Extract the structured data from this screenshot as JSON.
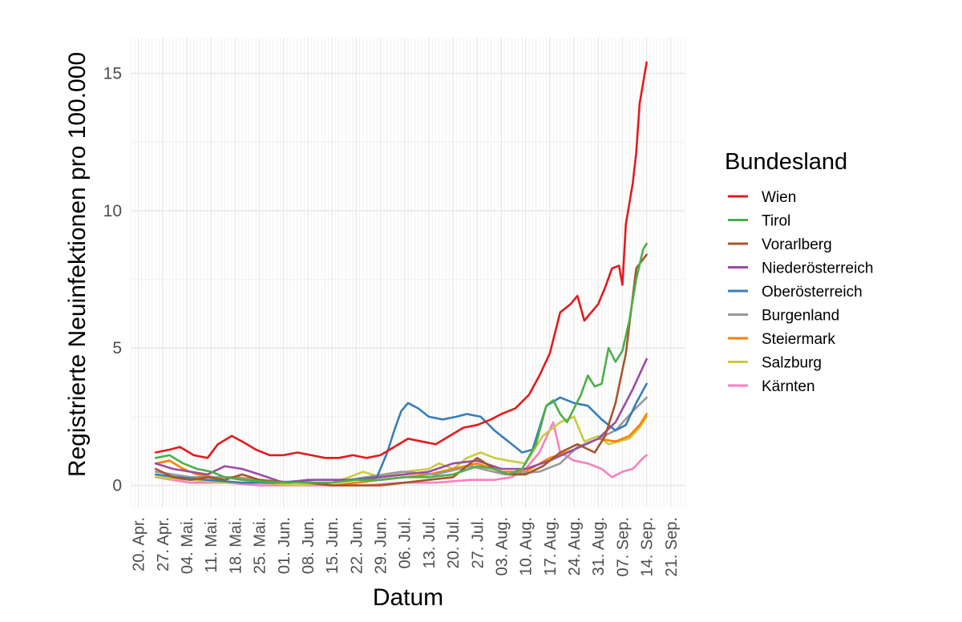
{
  "chart_data": {
    "type": "line",
    "xlabel": "Datum",
    "ylabel": "Registrierte Neuinfektionen pro 100.000",
    "x_tick_labels": [
      "20. Apr.",
      "27. Apr.",
      "04. Mai.",
      "11. Mai.",
      "18. Mai.",
      "25. Mai.",
      "01. Jun.",
      "08. Jun.",
      "15. Jun.",
      "22. Jun.",
      "29. Jun.",
      "06. Jul.",
      "13. Jul.",
      "20. Jul.",
      "27. Jul.",
      "03. Aug.",
      "10. Aug.",
      "17. Aug.",
      "24. Aug.",
      "31. Aug.",
      "07. Sep.",
      "14. Sep.",
      "21. Sep."
    ],
    "y_tick_labels": [
      "0",
      "5",
      "10",
      "15"
    ],
    "xlim": [
      "2020-04-18",
      "2020-09-25"
    ],
    "ylim": [
      -0.8,
      16.3
    ],
    "grid": true,
    "legend": {
      "title": "Bundesland",
      "position": "right"
    },
    "series": [
      {
        "name": "Wien",
        "color": "#e41a1c",
        "points": [
          [
            "2020-04-25",
            1.2
          ],
          [
            "2020-04-29",
            1.3
          ],
          [
            "2020-05-02",
            1.4
          ],
          [
            "2020-05-06",
            1.1
          ],
          [
            "2020-05-10",
            1.0
          ],
          [
            "2020-05-13",
            1.5
          ],
          [
            "2020-05-17",
            1.8
          ],
          [
            "2020-05-20",
            1.6
          ],
          [
            "2020-05-24",
            1.3
          ],
          [
            "2020-05-28",
            1.1
          ],
          [
            "2020-06-01",
            1.1
          ],
          [
            "2020-06-05",
            1.2
          ],
          [
            "2020-06-09",
            1.1
          ],
          [
            "2020-06-13",
            1.0
          ],
          [
            "2020-06-17",
            1.0
          ],
          [
            "2020-06-21",
            1.1
          ],
          [
            "2020-06-25",
            1.0
          ],
          [
            "2020-06-29",
            1.1
          ],
          [
            "2020-07-03",
            1.4
          ],
          [
            "2020-07-07",
            1.7
          ],
          [
            "2020-07-11",
            1.6
          ],
          [
            "2020-07-15",
            1.5
          ],
          [
            "2020-07-19",
            1.8
          ],
          [
            "2020-07-23",
            2.1
          ],
          [
            "2020-07-27",
            2.2
          ],
          [
            "2020-07-31",
            2.4
          ],
          [
            "2020-08-03",
            2.6
          ],
          [
            "2020-08-07",
            2.8
          ],
          [
            "2020-08-11",
            3.3
          ],
          [
            "2020-08-14",
            4.0
          ],
          [
            "2020-08-17",
            4.8
          ],
          [
            "2020-08-20",
            6.3
          ],
          [
            "2020-08-23",
            6.6
          ],
          [
            "2020-08-25",
            6.9
          ],
          [
            "2020-08-27",
            6.0
          ],
          [
            "2020-08-29",
            6.3
          ],
          [
            "2020-08-31",
            6.6
          ],
          [
            "2020-09-02",
            7.2
          ],
          [
            "2020-09-04",
            7.9
          ],
          [
            "2020-09-06",
            8.0
          ],
          [
            "2020-09-07",
            7.3
          ],
          [
            "2020-09-08",
            9.5
          ],
          [
            "2020-09-10",
            11.0
          ],
          [
            "2020-09-11",
            12.1
          ],
          [
            "2020-09-12",
            13.9
          ],
          [
            "2020-09-14",
            15.4
          ]
        ]
      },
      {
        "name": "Tirol",
        "color": "#4daf4a",
        "points": [
          [
            "2020-04-25",
            1.0
          ],
          [
            "2020-04-29",
            1.1
          ],
          [
            "2020-05-03",
            0.8
          ],
          [
            "2020-05-07",
            0.6
          ],
          [
            "2020-05-11",
            0.5
          ],
          [
            "2020-05-15",
            0.3
          ],
          [
            "2020-05-20",
            0.2
          ],
          [
            "2020-05-25",
            0.15
          ],
          [
            "2020-06-01",
            0.1
          ],
          [
            "2020-06-08",
            0.1
          ],
          [
            "2020-06-15",
            0.1
          ],
          [
            "2020-06-22",
            0.2
          ],
          [
            "2020-06-29",
            0.2
          ],
          [
            "2020-07-06",
            0.3
          ],
          [
            "2020-07-13",
            0.3
          ],
          [
            "2020-07-20",
            0.4
          ],
          [
            "2020-07-27",
            0.7
          ],
          [
            "2020-08-01",
            0.6
          ],
          [
            "2020-08-05",
            0.4
          ],
          [
            "2020-08-09",
            0.6
          ],
          [
            "2020-08-13",
            1.5
          ],
          [
            "2020-08-16",
            2.9
          ],
          [
            "2020-08-18",
            3.1
          ],
          [
            "2020-08-20",
            2.6
          ],
          [
            "2020-08-22",
            2.3
          ],
          [
            "2020-08-24",
            2.8
          ],
          [
            "2020-08-26",
            3.3
          ],
          [
            "2020-08-28",
            4.0
          ],
          [
            "2020-08-30",
            3.6
          ],
          [
            "2020-09-01",
            3.7
          ],
          [
            "2020-09-03",
            5.0
          ],
          [
            "2020-09-05",
            4.5
          ],
          [
            "2020-09-07",
            4.9
          ],
          [
            "2020-09-09",
            6.0
          ],
          [
            "2020-09-11",
            7.5
          ],
          [
            "2020-09-13",
            8.6
          ],
          [
            "2020-09-14",
            8.8
          ]
        ]
      },
      {
        "name": "Vorarlberg",
        "color": "#a65628",
        "points": [
          [
            "2020-04-25",
            0.6
          ],
          [
            "2020-04-30",
            0.3
          ],
          [
            "2020-05-05",
            0.2
          ],
          [
            "2020-05-10",
            0.3
          ],
          [
            "2020-05-15",
            0.2
          ],
          [
            "2020-05-20",
            0.4
          ],
          [
            "2020-05-25",
            0.2
          ],
          [
            "2020-06-01",
            0.1
          ],
          [
            "2020-06-08",
            0.1
          ],
          [
            "2020-06-15",
            0.0
          ],
          [
            "2020-06-22",
            0.0
          ],
          [
            "2020-06-29",
            0.0
          ],
          [
            "2020-07-06",
            0.1
          ],
          [
            "2020-07-13",
            0.2
          ],
          [
            "2020-07-20",
            0.3
          ],
          [
            "2020-07-27",
            1.0
          ],
          [
            "2020-08-01",
            0.6
          ],
          [
            "2020-08-05",
            0.4
          ],
          [
            "2020-08-10",
            0.4
          ],
          [
            "2020-08-15",
            0.7
          ],
          [
            "2020-08-20",
            1.2
          ],
          [
            "2020-08-25",
            1.5
          ],
          [
            "2020-08-30",
            1.2
          ],
          [
            "2020-09-02",
            1.8
          ],
          [
            "2020-09-05",
            3.0
          ],
          [
            "2020-09-08",
            4.8
          ],
          [
            "2020-09-11",
            7.9
          ],
          [
            "2020-09-14",
            8.4
          ]
        ]
      },
      {
        "name": "Niederösterreich",
        "color": "#984ea3",
        "points": [
          [
            "2020-04-25",
            0.8
          ],
          [
            "2020-04-30",
            0.6
          ],
          [
            "2020-05-05",
            0.5
          ],
          [
            "2020-05-10",
            0.4
          ],
          [
            "2020-05-15",
            0.7
          ],
          [
            "2020-05-20",
            0.6
          ],
          [
            "2020-05-25",
            0.4
          ],
          [
            "2020-06-01",
            0.1
          ],
          [
            "2020-06-08",
            0.2
          ],
          [
            "2020-06-15",
            0.2
          ],
          [
            "2020-06-22",
            0.2
          ],
          [
            "2020-06-29",
            0.3
          ],
          [
            "2020-07-06",
            0.4
          ],
          [
            "2020-07-13",
            0.5
          ],
          [
            "2020-07-20",
            0.8
          ],
          [
            "2020-07-27",
            0.9
          ],
          [
            "2020-08-03",
            0.6
          ],
          [
            "2020-08-10",
            0.6
          ],
          [
            "2020-08-17",
            0.9
          ],
          [
            "2020-08-24",
            1.3
          ],
          [
            "2020-08-31",
            1.7
          ],
          [
            "2020-09-05",
            2.3
          ],
          [
            "2020-09-10",
            3.5
          ],
          [
            "2020-09-14",
            4.6
          ]
        ]
      },
      {
        "name": "Oberösterreich",
        "color": "#377eb8",
        "points": [
          [
            "2020-04-25",
            0.4
          ],
          [
            "2020-05-01",
            0.3
          ],
          [
            "2020-05-10",
            0.2
          ],
          [
            "2020-05-20",
            0.1
          ],
          [
            "2020-05-30",
            0.1
          ],
          [
            "2020-06-10",
            0.2
          ],
          [
            "2020-06-20",
            0.2
          ],
          [
            "2020-06-28",
            0.3
          ],
          [
            "2020-07-01",
            1.2
          ],
          [
            "2020-07-03",
            2.0
          ],
          [
            "2020-07-05",
            2.7
          ],
          [
            "2020-07-07",
            3.0
          ],
          [
            "2020-07-10",
            2.8
          ],
          [
            "2020-07-13",
            2.5
          ],
          [
            "2020-07-17",
            2.4
          ],
          [
            "2020-07-21",
            2.5
          ],
          [
            "2020-07-24",
            2.6
          ],
          [
            "2020-07-28",
            2.5
          ],
          [
            "2020-08-01",
            2.0
          ],
          [
            "2020-08-05",
            1.6
          ],
          [
            "2020-08-09",
            1.2
          ],
          [
            "2020-08-12",
            1.3
          ],
          [
            "2020-08-16",
            2.9
          ],
          [
            "2020-08-20",
            3.2
          ],
          [
            "2020-08-24",
            3.0
          ],
          [
            "2020-08-28",
            2.9
          ],
          [
            "2020-09-01",
            2.4
          ],
          [
            "2020-09-05",
            2.0
          ],
          [
            "2020-09-08",
            2.2
          ],
          [
            "2020-09-11",
            3.0
          ],
          [
            "2020-09-14",
            3.7
          ]
        ]
      },
      {
        "name": "Burgenland",
        "color": "#999999",
        "points": [
          [
            "2020-04-25",
            0.5
          ],
          [
            "2020-05-05",
            0.3
          ],
          [
            "2020-05-15",
            0.3
          ],
          [
            "2020-05-25",
            0.2
          ],
          [
            "2020-06-05",
            0.1
          ],
          [
            "2020-06-15",
            0.1
          ],
          [
            "2020-06-25",
            0.3
          ],
          [
            "2020-07-05",
            0.5
          ],
          [
            "2020-07-15",
            0.4
          ],
          [
            "2020-07-25",
            0.7
          ],
          [
            "2020-08-04",
            0.4
          ],
          [
            "2020-08-14",
            0.5
          ],
          [
            "2020-08-20",
            0.8
          ],
          [
            "2020-08-25",
            1.4
          ],
          [
            "2020-08-31",
            1.7
          ],
          [
            "2020-09-05",
            2.0
          ],
          [
            "2020-09-10",
            2.7
          ],
          [
            "2020-09-14",
            3.2
          ]
        ]
      },
      {
        "name": "Steiermark",
        "color": "#ff7f00",
        "points": [
          [
            "2020-04-25",
            0.8
          ],
          [
            "2020-04-29",
            0.9
          ],
          [
            "2020-05-03",
            0.6
          ],
          [
            "2020-05-07",
            0.4
          ],
          [
            "2020-05-12",
            0.3
          ],
          [
            "2020-05-18",
            0.3
          ],
          [
            "2020-05-25",
            0.2
          ],
          [
            "2020-06-01",
            0.1
          ],
          [
            "2020-06-08",
            0.1
          ],
          [
            "2020-06-15",
            0.0
          ],
          [
            "2020-06-22",
            0.1
          ],
          [
            "2020-06-29",
            0.2
          ],
          [
            "2020-07-06",
            0.3
          ],
          [
            "2020-07-13",
            0.4
          ],
          [
            "2020-07-20",
            0.6
          ],
          [
            "2020-07-27",
            0.8
          ],
          [
            "2020-08-03",
            0.5
          ],
          [
            "2020-08-10",
            0.5
          ],
          [
            "2020-08-17",
            1.0
          ],
          [
            "2020-08-24",
            1.3
          ],
          [
            "2020-08-31",
            1.7
          ],
          [
            "2020-09-05",
            1.6
          ],
          [
            "2020-09-09",
            1.8
          ],
          [
            "2020-09-12",
            2.2
          ],
          [
            "2020-09-14",
            2.6
          ]
        ]
      },
      {
        "name": "Salzburg",
        "color": "#c9cc3f",
        "points": [
          [
            "2020-04-25",
            0.3
          ],
          [
            "2020-05-05",
            0.2
          ],
          [
            "2020-05-15",
            0.1
          ],
          [
            "2020-05-25",
            0.1
          ],
          [
            "2020-06-05",
            0.0
          ],
          [
            "2020-06-15",
            0.1
          ],
          [
            "2020-06-20",
            0.3
          ],
          [
            "2020-06-24",
            0.5
          ],
          [
            "2020-06-29",
            0.3
          ],
          [
            "2020-07-06",
            0.5
          ],
          [
            "2020-07-13",
            0.6
          ],
          [
            "2020-07-16",
            0.8
          ],
          [
            "2020-07-20",
            0.6
          ],
          [
            "2020-07-24",
            1.0
          ],
          [
            "2020-07-28",
            1.2
          ],
          [
            "2020-08-01",
            1.0
          ],
          [
            "2020-08-05",
            0.9
          ],
          [
            "2020-08-10",
            0.8
          ],
          [
            "2020-08-15",
            1.8
          ],
          [
            "2020-08-20",
            2.3
          ],
          [
            "2020-08-24",
            2.5
          ],
          [
            "2020-08-27",
            1.6
          ],
          [
            "2020-08-31",
            1.8
          ],
          [
            "2020-09-03",
            1.5
          ],
          [
            "2020-09-06",
            1.6
          ],
          [
            "2020-09-09",
            1.7
          ],
          [
            "2020-09-12",
            2.1
          ],
          [
            "2020-09-14",
            2.5
          ]
        ]
      },
      {
        "name": "Kärnten",
        "color": "#f781bf",
        "points": [
          [
            "2020-04-25",
            0.3
          ],
          [
            "2020-05-05",
            0.1
          ],
          [
            "2020-05-15",
            0.1
          ],
          [
            "2020-05-25",
            0.0
          ],
          [
            "2020-06-05",
            0.0
          ],
          [
            "2020-06-15",
            0.0
          ],
          [
            "2020-06-25",
            0.0
          ],
          [
            "2020-07-05",
            0.1
          ],
          [
            "2020-07-15",
            0.1
          ],
          [
            "2020-07-25",
            0.2
          ],
          [
            "2020-08-01",
            0.2
          ],
          [
            "2020-08-06",
            0.3
          ],
          [
            "2020-08-10",
            0.6
          ],
          [
            "2020-08-14",
            1.2
          ],
          [
            "2020-08-18",
            2.3
          ],
          [
            "2020-08-20",
            1.2
          ],
          [
            "2020-08-24",
            0.9
          ],
          [
            "2020-08-28",
            0.8
          ],
          [
            "2020-09-01",
            0.6
          ],
          [
            "2020-09-04",
            0.3
          ],
          [
            "2020-09-07",
            0.5
          ],
          [
            "2020-09-10",
            0.6
          ],
          [
            "2020-09-13",
            1.0
          ],
          [
            "2020-09-14",
            1.1
          ]
        ]
      }
    ]
  }
}
